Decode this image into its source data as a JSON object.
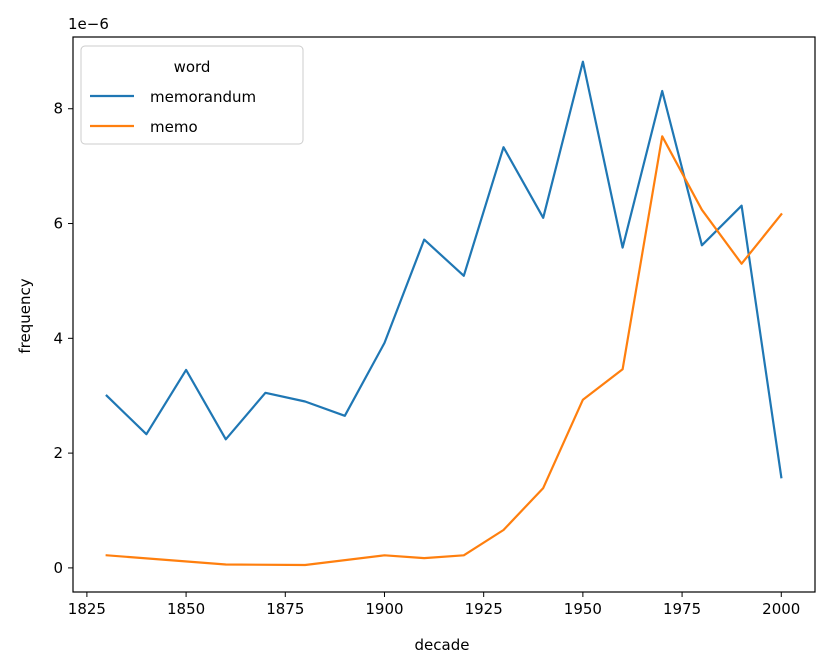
{
  "chart_data": {
    "type": "line",
    "title": "",
    "xlabel": "decade",
    "ylabel": "frequency",
    "y_offset_text": "1e−6",
    "xlim": [
      1821.5,
      2008.5
    ],
    "ylim": [
      -0.42,
      9.25
    ],
    "x_ticks": [
      1825,
      1850,
      1875,
      1900,
      1925,
      1950,
      1975,
      2000
    ],
    "x_tick_labels": [
      "1825",
      "1850",
      "1875",
      "1900",
      "1925",
      "1950",
      "1975",
      "2000"
    ],
    "y_ticks": [
      0,
      2,
      4,
      6,
      8
    ],
    "y_tick_labels": [
      "0",
      "2",
      "4",
      "6",
      "8"
    ],
    "grid": false,
    "legend": {
      "title": "word",
      "placement": "top-left"
    },
    "x": [
      1830,
      1840,
      1850,
      1860,
      1870,
      1880,
      1890,
      1900,
      1910,
      1920,
      1930,
      1940,
      1950,
      1960,
      1970,
      1980,
      1990,
      2000
    ],
    "series": [
      {
        "name": "memorandum",
        "color": "#1f77b4",
        "values": [
          3.0,
          2.33,
          3.45,
          2.24,
          3.05,
          2.9,
          2.65,
          3.92,
          5.72,
          5.09,
          7.33,
          6.1,
          8.82,
          5.58,
          8.31,
          5.62,
          6.31,
          1.58
        ]
      },
      {
        "name": "memo",
        "color": "#ff7f0e",
        "values": [
          0.22,
          null,
          null,
          0.06,
          null,
          0.05,
          null,
          0.22,
          0.17,
          0.22,
          0.66,
          1.39,
          2.93,
          3.46,
          7.52,
          6.24,
          5.3,
          6.16
        ]
      }
    ]
  }
}
